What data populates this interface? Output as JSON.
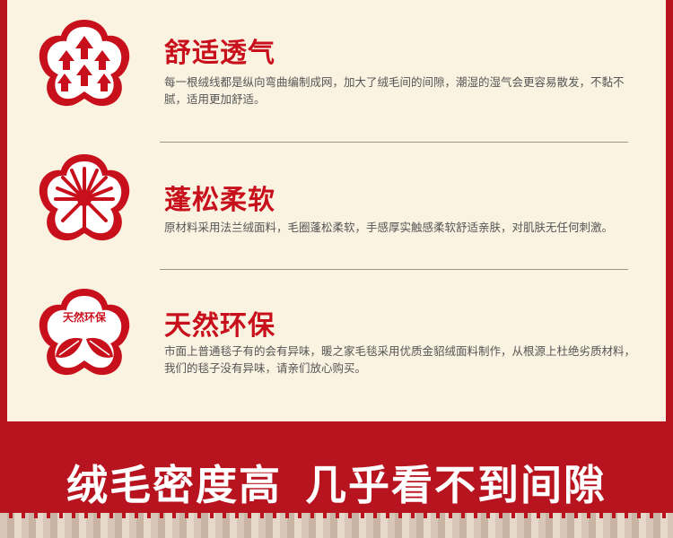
{
  "features": [
    {
      "icon": "arrows-up-icon",
      "title": "舒适透气",
      "desc": "每一根绒线都是纵向弯曲编制成网，加大了绒毛间的间隙，潮湿的湿气会更容易散发，不黏不腻，适用更加舒适。"
    },
    {
      "icon": "burst-icon",
      "title": "蓬松柔软",
      "desc": "原材料采用法兰绒面料，毛圈蓬松柔软，手感厚实触感柔软舒适亲肤，对肌肤无任何刺激。"
    },
    {
      "icon": "leaves-icon",
      "icon_label": "天然环保",
      "title": "天然环保",
      "desc": "市面上普通毯子有的会有异味，暖之家毛毯采用优质金貂绒面料制作，从根源上杜绝劣质材料，我们的毯子没有异味，请亲们放心购买。"
    }
  ],
  "banner": {
    "left": "绒毛密度高",
    "right": "几乎看不到间隙"
  },
  "colors": {
    "brand_red": "#c8101c",
    "panel_bg": "#fbf3e1",
    "page_bg": "#b8141f"
  }
}
